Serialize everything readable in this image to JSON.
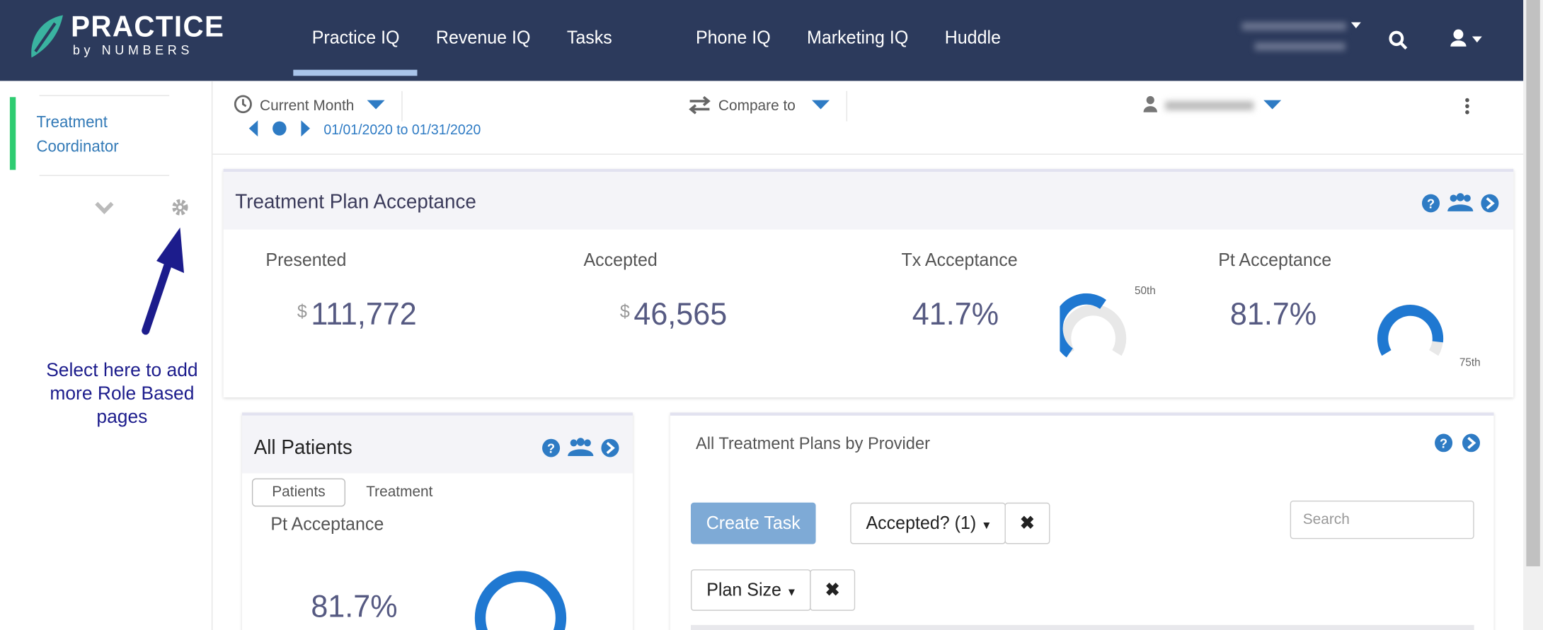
{
  "header": {
    "logo": {
      "title": "PRACTICE",
      "subtitle": "by NUMBERS"
    },
    "nav": [
      "Practice IQ",
      "Revenue IQ",
      "Tasks",
      "Phone IQ",
      "Marketing IQ",
      "Huddle"
    ]
  },
  "sidebar": {
    "item": "Treatment Coordinator",
    "annotation": "Select here to add more Role Based pages"
  },
  "toolbar": {
    "period": "Current Month",
    "range": "01/01/2020 to 01/31/2020",
    "compare": "Compare to"
  },
  "kpi_card": {
    "title": "Treatment Plan Acceptance",
    "metrics": [
      {
        "label": "Presented",
        "currency": "$",
        "value": "111,772"
      },
      {
        "label": "Accepted",
        "currency": "$",
        "value": "46,565"
      },
      {
        "label": "Tx Acceptance",
        "value": "41.7%",
        "benchmark": "50th"
      },
      {
        "label": "Pt Acceptance",
        "value": "81.7%",
        "benchmark": "75th"
      }
    ]
  },
  "patients_card": {
    "title": "All Patients",
    "tabs": [
      "Patients",
      "Treatment"
    ],
    "metric_label": "Pt Acceptance",
    "value": "81.7%"
  },
  "plans_card": {
    "title": "All Treatment Plans by Provider",
    "button": "Create Task",
    "filters": [
      "Accepted? (1)",
      "Plan Size"
    ],
    "search_placeholder": "Search"
  }
}
